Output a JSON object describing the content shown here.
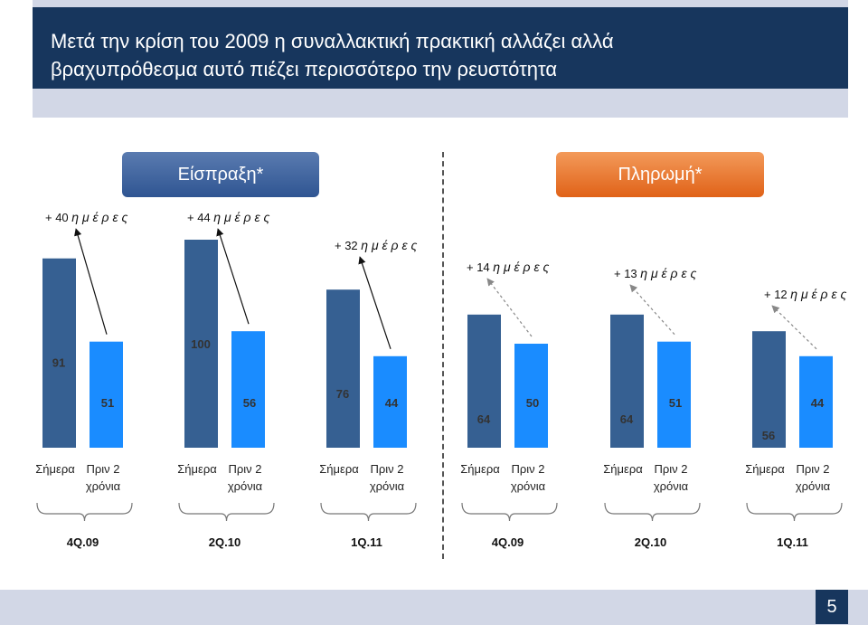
{
  "header": {
    "title_line1": "Μετά την κρίση του 2009 η συναλλακτική πρακτική αλλάζει αλλά",
    "title_line2": "βραχυπρόθεσμα αυτό πιέζει περισσότερο την ρευστότητα"
  },
  "pills": {
    "collection": "Είσπραξη*",
    "payment": "Πληρωμή*"
  },
  "page_number": "5",
  "colors": {
    "today": "#366092",
    "before": "#1a8cff",
    "title_bg": "#17365d",
    "band": "#d2d7e6"
  },
  "chart_data": {
    "type": "bar",
    "title": "",
    "categories": [
      "4Q.09",
      "2Q.10",
      "1Q.11",
      "4Q.09",
      "2Q.10",
      "1Q.11"
    ],
    "bar_labels": [
      "Σήμερα",
      "Πριν 2 χρόνια"
    ],
    "series": [
      {
        "name": "Σήμερα",
        "values": [
          91,
          100,
          76,
          64,
          64,
          56
        ]
      },
      {
        "name": "Πριν 2 χρόνια",
        "values": [
          51,
          56,
          44,
          50,
          51,
          44
        ]
      }
    ],
    "differences": [
      "+ 40",
      "+ 44",
      "+ 32",
      "+ 14",
      "+ 13",
      "+ 12"
    ],
    "difference_unit": "η μ έ ρ ε ς",
    "ylim": [
      0,
      110
    ],
    "xlabel": "",
    "ylabel": ""
  }
}
